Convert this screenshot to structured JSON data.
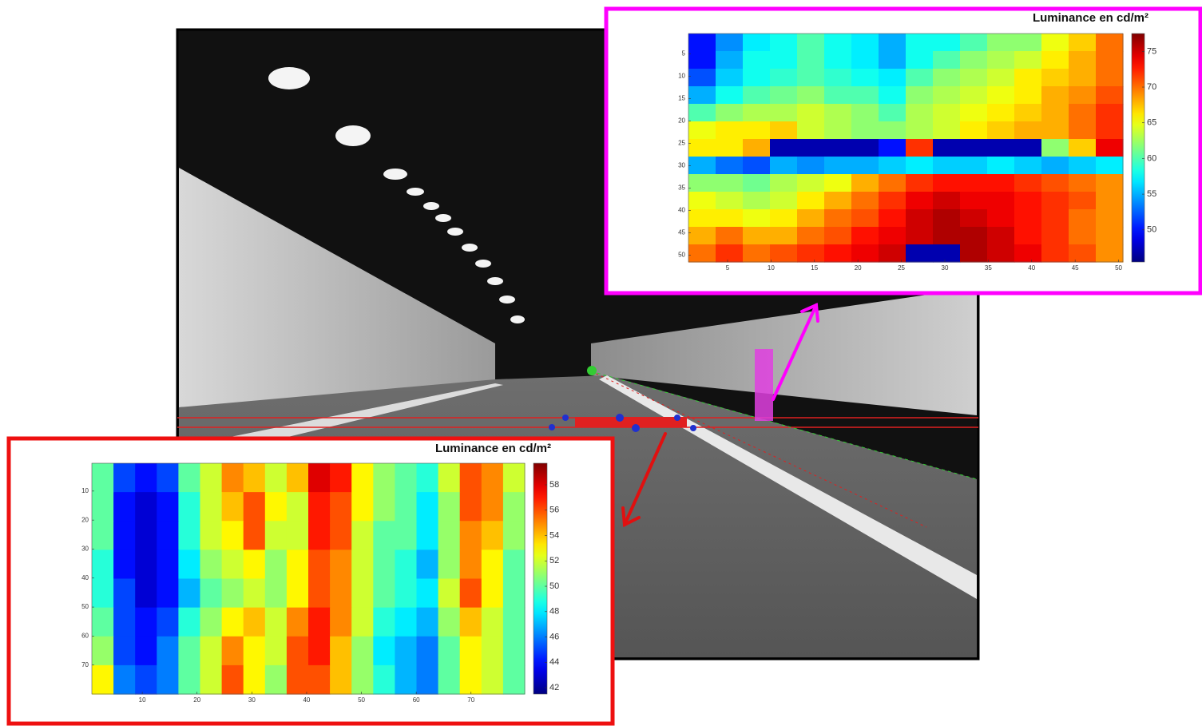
{
  "chart_data": [
    {
      "type": "heatmap",
      "title": "Luminance en cd/m²",
      "xlim": [
        0.5,
        50.5
      ],
      "ylim": [
        0.5,
        51.5
      ],
      "xticks": [
        5,
        10,
        15,
        20,
        25,
        30,
        35,
        40,
        45,
        50
      ],
      "yticks": [
        5,
        10,
        15,
        20,
        25,
        30,
        35,
        40,
        45,
        50
      ],
      "zlim": [
        45.5,
        77.5
      ],
      "zticks": [
        50,
        55,
        60,
        65,
        70,
        75
      ],
      "colormap": "jet",
      "values": [
        [
          50,
          54,
          57,
          58,
          60,
          58,
          57,
          55,
          58,
          58,
          60,
          62,
          62,
          65,
          67,
          70
        ],
        [
          50,
          55,
          58,
          58,
          60,
          58,
          57,
          55,
          58,
          60,
          62,
          63,
          64,
          66,
          68,
          70
        ],
        [
          52,
          56,
          58,
          59,
          60,
          59,
          58,
          57,
          60,
          62,
          63,
          64,
          66,
          67,
          68,
          70
        ],
        [
          55,
          58,
          60,
          61,
          62,
          60,
          60,
          58,
          62,
          63,
          64,
          65,
          66,
          68,
          69,
          71
        ],
        [
          60,
          62,
          63,
          63,
          64,
          63,
          62,
          60,
          63,
          64,
          65,
          66,
          67,
          68,
          70,
          72
        ],
        [
          65,
          66,
          66,
          67,
          64,
          63,
          62,
          62,
          63,
          64,
          66,
          67,
          68,
          68,
          70,
          72
        ],
        [
          66,
          66,
          68,
          47,
          47,
          47,
          47,
          50,
          72,
          47,
          47,
          47,
          47,
          62,
          67,
          74
        ],
        [
          55,
          53,
          52,
          55,
          54,
          55,
          55,
          56,
          57,
          56,
          56,
          57,
          56,
          55,
          56,
          57
        ],
        [
          62,
          62,
          61,
          63,
          64,
          65,
          68,
          70,
          72,
          73,
          73,
          73,
          72,
          71,
          70,
          69
        ],
        [
          65,
          64,
          63,
          64,
          66,
          68,
          70,
          72,
          74,
          75,
          74,
          74,
          73,
          72,
          71,
          69
        ],
        [
          66,
          66,
          65,
          66,
          68,
          70,
          71,
          73,
          75,
          76,
          75,
          74,
          73,
          72,
          70,
          69
        ],
        [
          68,
          70,
          68,
          68,
          70,
          71,
          73,
          74,
          75,
          76,
          76,
          75,
          73,
          72,
          70,
          69
        ],
        [
          70,
          72,
          70,
          71,
          72,
          73,
          74,
          75,
          47,
          47,
          76,
          75,
          74,
          72,
          71,
          69
        ]
      ]
    },
    {
      "type": "heatmap",
      "title": "Luminance en cd/m²",
      "xlim": [
        0.8,
        79.8
      ],
      "ylim": [
        0.4,
        80
      ],
      "xticks": [
        10,
        20,
        30,
        40,
        50,
        60,
        70
      ],
      "yticks": [
        10,
        20,
        30,
        40,
        50,
        60,
        70
      ],
      "zlim": [
        41.5,
        59.7
      ],
      "zticks": [
        42,
        44,
        46,
        48,
        50,
        52,
        54,
        56,
        58
      ],
      "colormap": "jet",
      "values": [
        [
          50,
          45,
          44,
          45,
          50,
          52,
          55,
          54,
          52,
          54,
          58,
          57,
          53,
          51,
          50,
          49,
          52,
          56,
          55,
          52
        ],
        [
          50,
          44,
          43,
          44,
          49,
          52,
          54,
          56,
          53,
          52,
          57,
          56,
          53,
          51,
          50,
          48,
          51,
          56,
          55,
          51
        ],
        [
          50,
          44,
          43,
          44,
          49,
          52,
          53,
          56,
          52,
          52,
          57,
          56,
          52,
          50,
          50,
          48,
          51,
          55,
          54,
          51
        ],
        [
          49,
          44,
          43,
          44,
          48,
          51,
          52,
          53,
          51,
          53,
          56,
          55,
          52,
          50,
          49,
          47,
          51,
          55,
          53,
          50
        ],
        [
          49,
          45,
          43,
          44,
          47,
          50,
          51,
          52,
          51,
          53,
          56,
          55,
          52,
          50,
          49,
          48,
          52,
          56,
          53,
          50
        ],
        [
          50,
          45,
          44,
          45,
          49,
          51,
          53,
          54,
          52,
          55,
          57,
          55,
          52,
          49,
          48,
          47,
          51,
          54,
          52,
          50
        ],
        [
          51,
          45,
          44,
          46,
          50,
          52,
          55,
          53,
          52,
          56,
          57,
          54,
          51,
          48,
          47,
          46,
          50,
          53,
          52,
          50
        ],
        [
          53,
          46,
          45,
          46,
          50,
          52,
          56,
          53,
          51,
          56,
          56,
          54,
          51,
          49,
          47,
          46,
          50,
          53,
          52,
          50
        ]
      ]
    }
  ]
}
